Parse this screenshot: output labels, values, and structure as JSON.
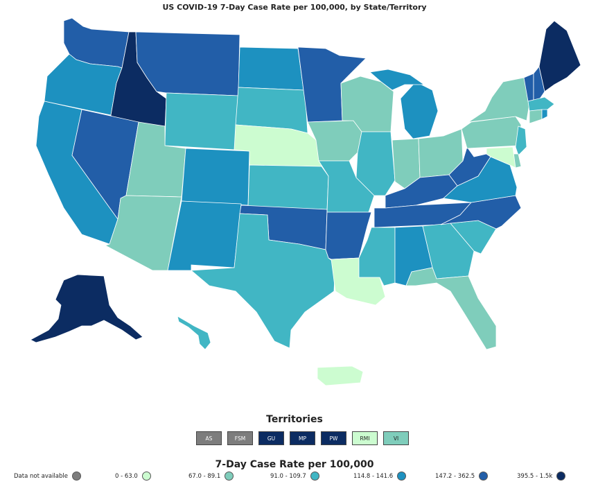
{
  "title": "US COVID-19 7-Day Case Rate per 100,000, by State/Territory",
  "colors": {
    "na": "#7d7d7d",
    "b1": "#ccfcd0",
    "b2": "#7fcdbb",
    "b3": "#41b6c4",
    "b4": "#1d91c0",
    "b5": "#225ea8",
    "b6": "#0c2c62"
  },
  "territories": {
    "title": "Territories",
    "items": [
      {
        "label": "AS",
        "color": "#7d7d7d",
        "text_color": "#ffffff"
      },
      {
        "label": "FSM",
        "color": "#7d7d7d",
        "text_color": "#ffffff"
      },
      {
        "label": "GU",
        "color": "#0c2c62",
        "text_color": "#ffffff"
      },
      {
        "label": "MP",
        "color": "#0c2c62",
        "text_color": "#ffffff"
      },
      {
        "label": "PW",
        "color": "#0c2c62",
        "text_color": "#ffffff"
      },
      {
        "label": "RMI",
        "color": "#ccfcd0",
        "text_color": "#222222"
      },
      {
        "label": "VI",
        "color": "#7fcdbb",
        "text_color": "#222222"
      }
    ]
  },
  "legend": {
    "title": "7-Day Case Rate per 100,000",
    "items": [
      {
        "label": "Data not available",
        "color": "#7d7d7d"
      },
      {
        "label": "0 - 63.0",
        "color": "#ccfcd0"
      },
      {
        "label": "67.0 - 89.1",
        "color": "#7fcdbb"
      },
      {
        "label": "91.0 - 109.7",
        "color": "#41b6c4"
      },
      {
        "label": "114.8 - 141.6",
        "color": "#1d91c0"
      },
      {
        "label": "147.2 - 362.5",
        "color": "#225ea8"
      },
      {
        "label": "395.5 - 1.5k",
        "color": "#0c2c62"
      }
    ]
  },
  "states": [
    {
      "name": "WA",
      "bin": "b5"
    },
    {
      "name": "OR",
      "bin": "b4"
    },
    {
      "name": "CA",
      "bin": "b4"
    },
    {
      "name": "ID",
      "bin": "b6"
    },
    {
      "name": "NV",
      "bin": "b5"
    },
    {
      "name": "MT",
      "bin": "b5"
    },
    {
      "name": "WY",
      "bin": "b3"
    },
    {
      "name": "UT",
      "bin": "b2"
    },
    {
      "name": "AZ",
      "bin": "b2"
    },
    {
      "name": "CO",
      "bin": "b4"
    },
    {
      "name": "NM",
      "bin": "b4"
    },
    {
      "name": "ND",
      "bin": "b4"
    },
    {
      "name": "SD",
      "bin": "b3"
    },
    {
      "name": "NE",
      "bin": "b1"
    },
    {
      "name": "KS",
      "bin": "b3"
    },
    {
      "name": "OK",
      "bin": "b5"
    },
    {
      "name": "TX",
      "bin": "b3"
    },
    {
      "name": "MN",
      "bin": "b5"
    },
    {
      "name": "IA",
      "bin": "b2"
    },
    {
      "name": "MO",
      "bin": "b3"
    },
    {
      "name": "AR",
      "bin": "b5"
    },
    {
      "name": "LA",
      "bin": "b1"
    },
    {
      "name": "WI",
      "bin": "b2"
    },
    {
      "name": "IL",
      "bin": "b3"
    },
    {
      "name": "MI",
      "bin": "b4"
    },
    {
      "name": "IN",
      "bin": "b2"
    },
    {
      "name": "OH",
      "bin": "b2"
    },
    {
      "name": "KY",
      "bin": "b5"
    },
    {
      "name": "TN",
      "bin": "b5"
    },
    {
      "name": "MS",
      "bin": "b3"
    },
    {
      "name": "AL",
      "bin": "b4"
    },
    {
      "name": "GA",
      "bin": "b3"
    },
    {
      "name": "FL",
      "bin": "b2"
    },
    {
      "name": "SC",
      "bin": "b3"
    },
    {
      "name": "NC",
      "bin": "b5"
    },
    {
      "name": "VA",
      "bin": "b4"
    },
    {
      "name": "WV",
      "bin": "b5"
    },
    {
      "name": "PA",
      "bin": "b2"
    },
    {
      "name": "NY",
      "bin": "b2"
    },
    {
      "name": "VT",
      "bin": "b5"
    },
    {
      "name": "NH",
      "bin": "b5"
    },
    {
      "name": "ME",
      "bin": "b6"
    },
    {
      "name": "MA",
      "bin": "b3"
    },
    {
      "name": "CT",
      "bin": "b2"
    },
    {
      "name": "RI",
      "bin": "b4"
    },
    {
      "name": "NJ",
      "bin": "b3"
    },
    {
      "name": "DE",
      "bin": "b2"
    },
    {
      "name": "MD",
      "bin": "b1"
    },
    {
      "name": "AK",
      "bin": "b6"
    },
    {
      "name": "HI",
      "bin": "b3"
    },
    {
      "name": "PR",
      "bin": "b1"
    }
  ]
}
